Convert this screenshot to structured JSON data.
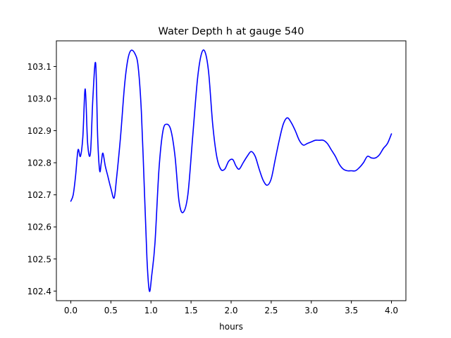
{
  "chart_data": {
    "type": "line",
    "title": "Water Depth h at gauge 540",
    "xlabel": "hours",
    "ylabel": "",
    "xlim": [
      -0.18,
      4.18
    ],
    "ylim": [
      102.37,
      103.18
    ],
    "xticks": [
      0.0,
      0.5,
      1.0,
      1.5,
      2.0,
      2.5,
      3.0,
      3.5,
      4.0
    ],
    "xtick_labels": [
      "0.0",
      "0.5",
      "1.0",
      "1.5",
      "2.0",
      "2.5",
      "3.0",
      "3.5",
      "4.0"
    ],
    "yticks": [
      102.4,
      102.5,
      102.6,
      102.7,
      102.8,
      102.9,
      103.0,
      103.1
    ],
    "ytick_labels": [
      "102.4",
      "102.5",
      "102.6",
      "102.7",
      "102.8",
      "102.9",
      "103.0",
      "103.1"
    ],
    "grid": false,
    "series": [
      {
        "name": "",
        "color": "#0000ff",
        "x": [
          0.0,
          0.03,
          0.06,
          0.09,
          0.12,
          0.15,
          0.18,
          0.21,
          0.245,
          0.275,
          0.31,
          0.335,
          0.36,
          0.38,
          0.4,
          0.43,
          0.46,
          0.5,
          0.54,
          0.57,
          0.62,
          0.67,
          0.71,
          0.75,
          0.8,
          0.84,
          0.88,
          0.92,
          0.95,
          0.98,
          1.01,
          1.05,
          1.1,
          1.15,
          1.2,
          1.25,
          1.3,
          1.35,
          1.4,
          1.46,
          1.52,
          1.58,
          1.63,
          1.675,
          1.72,
          1.77,
          1.82,
          1.87,
          1.92,
          1.97,
          2.02,
          2.06,
          2.1,
          2.15,
          2.2,
          2.25,
          2.3,
          2.35,
          2.4,
          2.45,
          2.5,
          2.55,
          2.6,
          2.65,
          2.7,
          2.75,
          2.8,
          2.85,
          2.9,
          2.95,
          3.0,
          3.05,
          3.1,
          3.15,
          3.2,
          3.25,
          3.3,
          3.35,
          3.4,
          3.45,
          3.5,
          3.55,
          3.6,
          3.65,
          3.7,
          3.75,
          3.8,
          3.85,
          3.9,
          3.95,
          4.0
        ],
        "values": [
          102.68,
          102.7,
          102.76,
          102.84,
          102.82,
          102.88,
          103.03,
          102.86,
          102.83,
          103.0,
          103.11,
          102.88,
          102.775,
          102.8,
          102.83,
          102.79,
          102.76,
          102.72,
          102.69,
          102.75,
          102.88,
          103.04,
          103.12,
          103.15,
          103.14,
          103.1,
          102.96,
          102.7,
          102.5,
          102.4,
          102.45,
          102.55,
          102.78,
          102.9,
          102.92,
          102.9,
          102.82,
          102.68,
          102.645,
          102.7,
          102.88,
          103.06,
          103.14,
          103.145,
          103.08,
          102.92,
          102.82,
          102.78,
          102.78,
          102.805,
          102.81,
          102.79,
          102.78,
          102.8,
          102.82,
          102.835,
          102.82,
          102.78,
          102.745,
          102.73,
          102.75,
          102.81,
          102.87,
          102.92,
          102.94,
          102.925,
          102.9,
          102.87,
          102.855,
          102.86,
          102.865,
          102.87,
          102.87,
          102.87,
          102.86,
          102.84,
          102.82,
          102.795,
          102.78,
          102.775,
          102.775,
          102.775,
          102.785,
          102.8,
          102.82,
          102.815,
          102.815,
          102.825,
          102.845,
          102.86,
          102.89
        ]
      }
    ]
  }
}
